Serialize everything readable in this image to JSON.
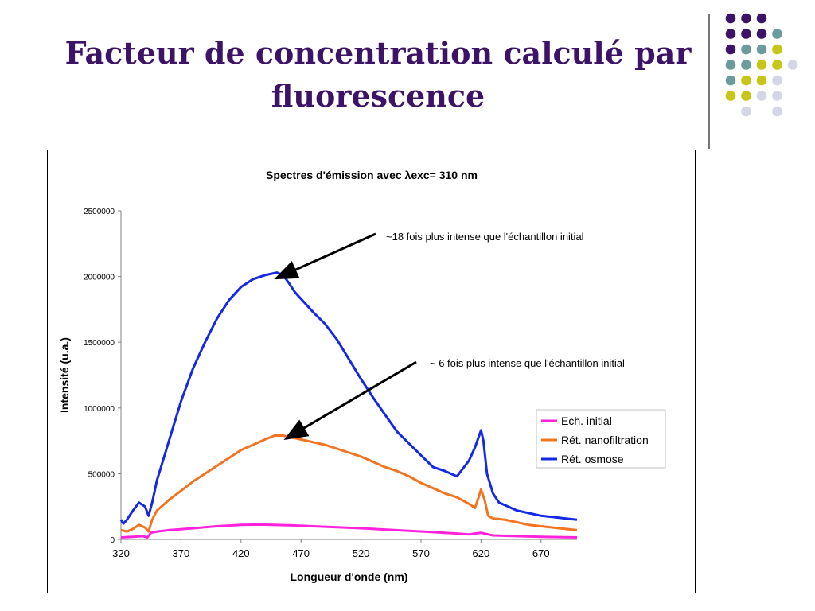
{
  "slide": {
    "title_line1": "Facteur de concentration calculé par",
    "title_line2": "fluorescence"
  },
  "decor": {
    "dot_colors": {
      "purple": "#3d1367",
      "teal": "#6d9a9a",
      "olive": "#c7c517",
      "lavender": "#d5d5e8"
    },
    "dot_grid": [
      [
        "purple",
        "purple",
        "purple",
        null,
        null
      ],
      [
        "purple",
        "purple",
        "purple",
        "teal",
        null
      ],
      [
        "purple",
        "teal",
        "teal",
        "olive",
        null
      ],
      [
        "teal",
        "teal",
        "olive",
        "olive",
        "lavender"
      ],
      [
        "teal",
        "olive",
        "olive",
        "lavender",
        null
      ],
      [
        "olive",
        "olive",
        "lavender",
        "lavender",
        null
      ],
      [
        null,
        "lavender",
        null,
        "lavender",
        null
      ]
    ],
    "dot_grid_offsets": [
      1,
      0,
      0,
      0,
      0,
      0,
      0
    ]
  },
  "chart_data": {
    "type": "line",
    "title": "Spectres d'émission avec λexc= 310 nm",
    "xlabel": "Longueur d'onde (nm)",
    "ylabel": "Intensité (u.a.)",
    "xlim": [
      320,
      700
    ],
    "ylim": [
      0,
      2500000
    ],
    "xticks": [
      320,
      370,
      420,
      470,
      520,
      570,
      620,
      670
    ],
    "yticks": [
      0,
      500000,
      1000000,
      1500000,
      2000000,
      2500000
    ],
    "grid": false,
    "legend_position": "right",
    "series": [
      {
        "name": "Ech. initial",
        "color": "#ff22dd",
        "x": [
          320,
          330,
          338,
          342,
          345,
          350,
          360,
          380,
          400,
          420,
          430,
          440,
          460,
          480,
          500,
          520,
          540,
          560,
          580,
          600,
          610,
          615,
          620,
          625,
          630,
          650,
          670,
          700
        ],
        "y": [
          15000,
          20000,
          25000,
          15000,
          50000,
          60000,
          70000,
          85000,
          100000,
          110000,
          112000,
          112000,
          108000,
          100000,
          92000,
          85000,
          75000,
          65000,
          55000,
          45000,
          38000,
          45000,
          50000,
          40000,
          30000,
          25000,
          20000,
          15000
        ]
      },
      {
        "name": "Rét. nanofiltration",
        "color": "#f37321",
        "x": [
          320,
          325,
          330,
          335,
          340,
          343,
          346,
          350,
          360,
          370,
          380,
          390,
          400,
          410,
          420,
          430,
          440,
          448,
          455,
          460,
          470,
          480,
          490,
          500,
          510,
          520,
          530,
          540,
          550,
          560,
          570,
          580,
          590,
          600,
          610,
          615,
          618,
          620,
          623,
          626,
          630,
          640,
          650,
          660,
          670,
          680,
          690,
          700
        ],
        "y": [
          70000,
          60000,
          80000,
          110000,
          90000,
          60000,
          150000,
          220000,
          300000,
          370000,
          440000,
          500000,
          560000,
          620000,
          680000,
          720000,
          760000,
          790000,
          790000,
          780000,
          760000,
          740000,
          720000,
          690000,
          660000,
          630000,
          590000,
          550000,
          520000,
          480000,
          430000,
          390000,
          350000,
          320000,
          270000,
          240000,
          320000,
          380000,
          300000,
          180000,
          160000,
          150000,
          130000,
          110000,
          100000,
          90000,
          80000,
          70000
        ]
      },
      {
        "name": "Rét. osmose",
        "color": "#1428e6",
        "x": [
          320,
          322,
          325,
          330,
          335,
          340,
          343,
          346,
          350,
          355,
          360,
          370,
          380,
          390,
          400,
          410,
          420,
          430,
          440,
          450,
          455,
          460,
          465,
          470,
          480,
          490,
          500,
          510,
          520,
          530,
          540,
          550,
          560,
          570,
          580,
          590,
          600,
          610,
          615,
          620,
          622,
          625,
          630,
          635,
          640,
          650,
          660,
          670,
          680,
          690,
          700
        ],
        "y": [
          150000,
          120000,
          150000,
          220000,
          280000,
          250000,
          180000,
          280000,
          450000,
          600000,
          750000,
          1050000,
          1300000,
          1500000,
          1680000,
          1820000,
          1920000,
          1980000,
          2010000,
          2030000,
          2010000,
          1950000,
          1880000,
          1830000,
          1730000,
          1640000,
          1520000,
          1370000,
          1220000,
          1080000,
          950000,
          820000,
          730000,
          640000,
          550000,
          520000,
          480000,
          600000,
          700000,
          830000,
          750000,
          500000,
          350000,
          280000,
          260000,
          220000,
          200000,
          180000,
          170000,
          160000,
          150000
        ]
      }
    ],
    "annotations": [
      {
        "text": "~18 fois plus intense que l'échantillon initial",
        "x": 448,
        "y": 2010000
      },
      {
        "text": "~ 6 fois plus intense que l'échantillon initial",
        "x": 456,
        "y": 790000
      }
    ]
  }
}
